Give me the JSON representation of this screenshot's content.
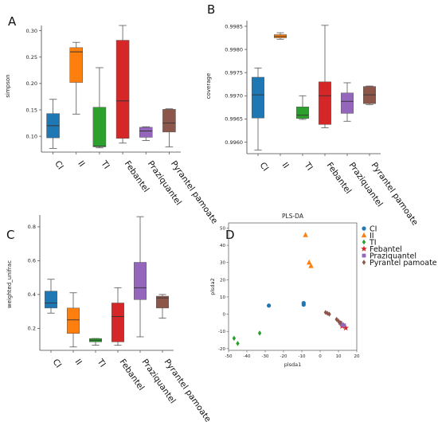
{
  "colors": {
    "CI": "#1f77b4",
    "II": "#ff7f0e",
    "TI": "#2ca02c",
    "Febantel": "#d62728",
    "Praziquantel": "#9467bd",
    "Pyrantel pamoate": "#8c564b"
  },
  "chart_data": [
    {
      "panel": "A",
      "type": "box",
      "ylabel": "simpson",
      "ylim": [
        0.07,
        0.31
      ],
      "yticks": [
        0.1,
        0.15,
        0.2,
        0.25,
        0.3
      ],
      "ytick_labels": [
        "0.10",
        "0.15",
        "0.20",
        "0.25",
        "0.30"
      ],
      "categories": [
        "CI",
        "II",
        "TI",
        "Febantel",
        "Praziquantel",
        "Pyrantel pamoate"
      ],
      "boxes": [
        {
          "min": 0.077,
          "q1": 0.097,
          "median": 0.12,
          "q3": 0.143,
          "max": 0.17
        },
        {
          "min": 0.142,
          "q1": 0.202,
          "median": 0.26,
          "q3": 0.268,
          "max": 0.278
        },
        {
          "min": 0.078,
          "q1": 0.08,
          "median": 0.081,
          "q3": 0.155,
          "max": 0.23
        },
        {
          "min": 0.087,
          "q1": 0.096,
          "median": 0.167,
          "q3": 0.282,
          "max": 0.31
        },
        {
          "min": 0.092,
          "q1": 0.098,
          "median": 0.11,
          "q3": 0.117,
          "max": 0.118
        },
        {
          "min": 0.08,
          "q1": 0.108,
          "median": 0.125,
          "q3": 0.151,
          "max": 0.152
        }
      ]
    },
    {
      "panel": "B",
      "type": "box",
      "ylabel": "coverage",
      "ylim": [
        0.99575,
        0.99862
      ],
      "yticks": [
        0.996,
        0.9965,
        0.997,
        0.9975,
        0.998,
        0.9985
      ],
      "ytick_labels": [
        "0.9960",
        "0.9965",
        "0.9970",
        "0.9975",
        "0.9980",
        "0.9985"
      ],
      "categories": [
        "CI",
        "II",
        "TI",
        "Febantel",
        "Praziquantel",
        "Pyrantel pamoate"
      ],
      "boxes": [
        {
          "min": 0.99583,
          "q1": 0.99652,
          "median": 0.99702,
          "q3": 0.9974,
          "max": 0.9976
        },
        {
          "min": 0.99822,
          "q1": 0.99825,
          "median": 0.99828,
          "q3": 0.99832,
          "max": 0.99836
        },
        {
          "min": 0.99649,
          "q1": 0.99651,
          "median": 0.99658,
          "q3": 0.99676,
          "max": 0.997
        },
        {
          "min": 0.99631,
          "q1": 0.99638,
          "median": 0.997,
          "q3": 0.9973,
          "max": 0.99852
        },
        {
          "min": 0.99645,
          "q1": 0.99662,
          "median": 0.99688,
          "q3": 0.99706,
          "max": 0.99728
        },
        {
          "min": 0.99681,
          "q1": 0.99683,
          "median": 0.99702,
          "q3": 0.9972,
          "max": 0.99721
        }
      ]
    },
    {
      "panel": "C",
      "type": "box",
      "ylabel": "weighted_unifrac",
      "ylim": [
        0.07,
        0.87
      ],
      "yticks": [
        0.2,
        0.4,
        0.6,
        0.8
      ],
      "ytick_labels": [
        "0.2",
        "0.4",
        "0.6",
        "0.8"
      ],
      "categories": [
        "CI",
        "II",
        "TI",
        "Febantel",
        "Praziquantel",
        "Pyrantel pamoate"
      ],
      "boxes": [
        {
          "min": 0.29,
          "q1": 0.32,
          "median": 0.35,
          "q3": 0.42,
          "max": 0.49
        },
        {
          "min": 0.09,
          "q1": 0.17,
          "median": 0.25,
          "q3": 0.32,
          "max": 0.41
        },
        {
          "min": 0.1,
          "q1": 0.12,
          "median": 0.13,
          "q3": 0.14,
          "max": 0.14
        },
        {
          "min": 0.1,
          "q1": 0.12,
          "median": 0.27,
          "q3": 0.35,
          "max": 0.44
        },
        {
          "min": 0.15,
          "q1": 0.37,
          "median": 0.44,
          "q3": 0.59,
          "max": 0.86
        },
        {
          "min": 0.26,
          "q1": 0.32,
          "median": 0.38,
          "q3": 0.39,
          "max": 0.4
        }
      ]
    },
    {
      "panel": "D",
      "type": "scatter",
      "title": "PLS-DA",
      "xlabel": "plsda1",
      "ylabel": "plsda2",
      "xlim": [
        -50,
        20
      ],
      "ylim": [
        -21,
        53
      ],
      "xticks": [
        -50,
        -40,
        -30,
        -20,
        -10,
        0,
        10,
        20
      ],
      "xtick_labels": [
        "-50",
        "-40",
        "-30",
        "-20",
        "-10",
        "0",
        "10",
        "20"
      ],
      "yticks": [
        -20,
        -10,
        0,
        10,
        20,
        30,
        40,
        50
      ],
      "ytick_labels": [
        "-20",
        "-10",
        "0",
        "10",
        "20",
        "30",
        "40",
        "50"
      ],
      "legend_position": "right",
      "series": [
        {
          "name": "CI",
          "marker": "circle",
          "points": [
            [
              -28,
              5
            ],
            [
              -9,
              5.5
            ],
            [
              -9,
              6.5
            ]
          ]
        },
        {
          "name": "II",
          "marker": "triangle",
          "points": [
            [
              -8,
              46
            ],
            [
              -6,
              30
            ],
            [
              -5,
              28
            ]
          ]
        },
        {
          "name": "TI",
          "marker": "diamond",
          "points": [
            [
              -47,
              -14
            ],
            [
              -45,
              -17
            ],
            [
              -33,
              -11
            ]
          ]
        },
        {
          "name": "Febantel",
          "marker": "star",
          "points": [
            [
              14,
              -8
            ],
            [
              12,
              -7
            ]
          ]
        },
        {
          "name": "Praziquantel",
          "marker": "square",
          "points": [
            [
              11,
              -5
            ],
            [
              12,
              -6
            ],
            [
              13,
              -6.5
            ]
          ]
        },
        {
          "name": "Pyrantel pamoate",
          "marker": "diamond",
          "points": [
            [
              3,
              1
            ],
            [
              4,
              0.5
            ],
            [
              5,
              0
            ],
            [
              9,
              -3
            ],
            [
              10,
              -4
            ],
            [
              11,
              -5
            ]
          ]
        }
      ]
    }
  ]
}
